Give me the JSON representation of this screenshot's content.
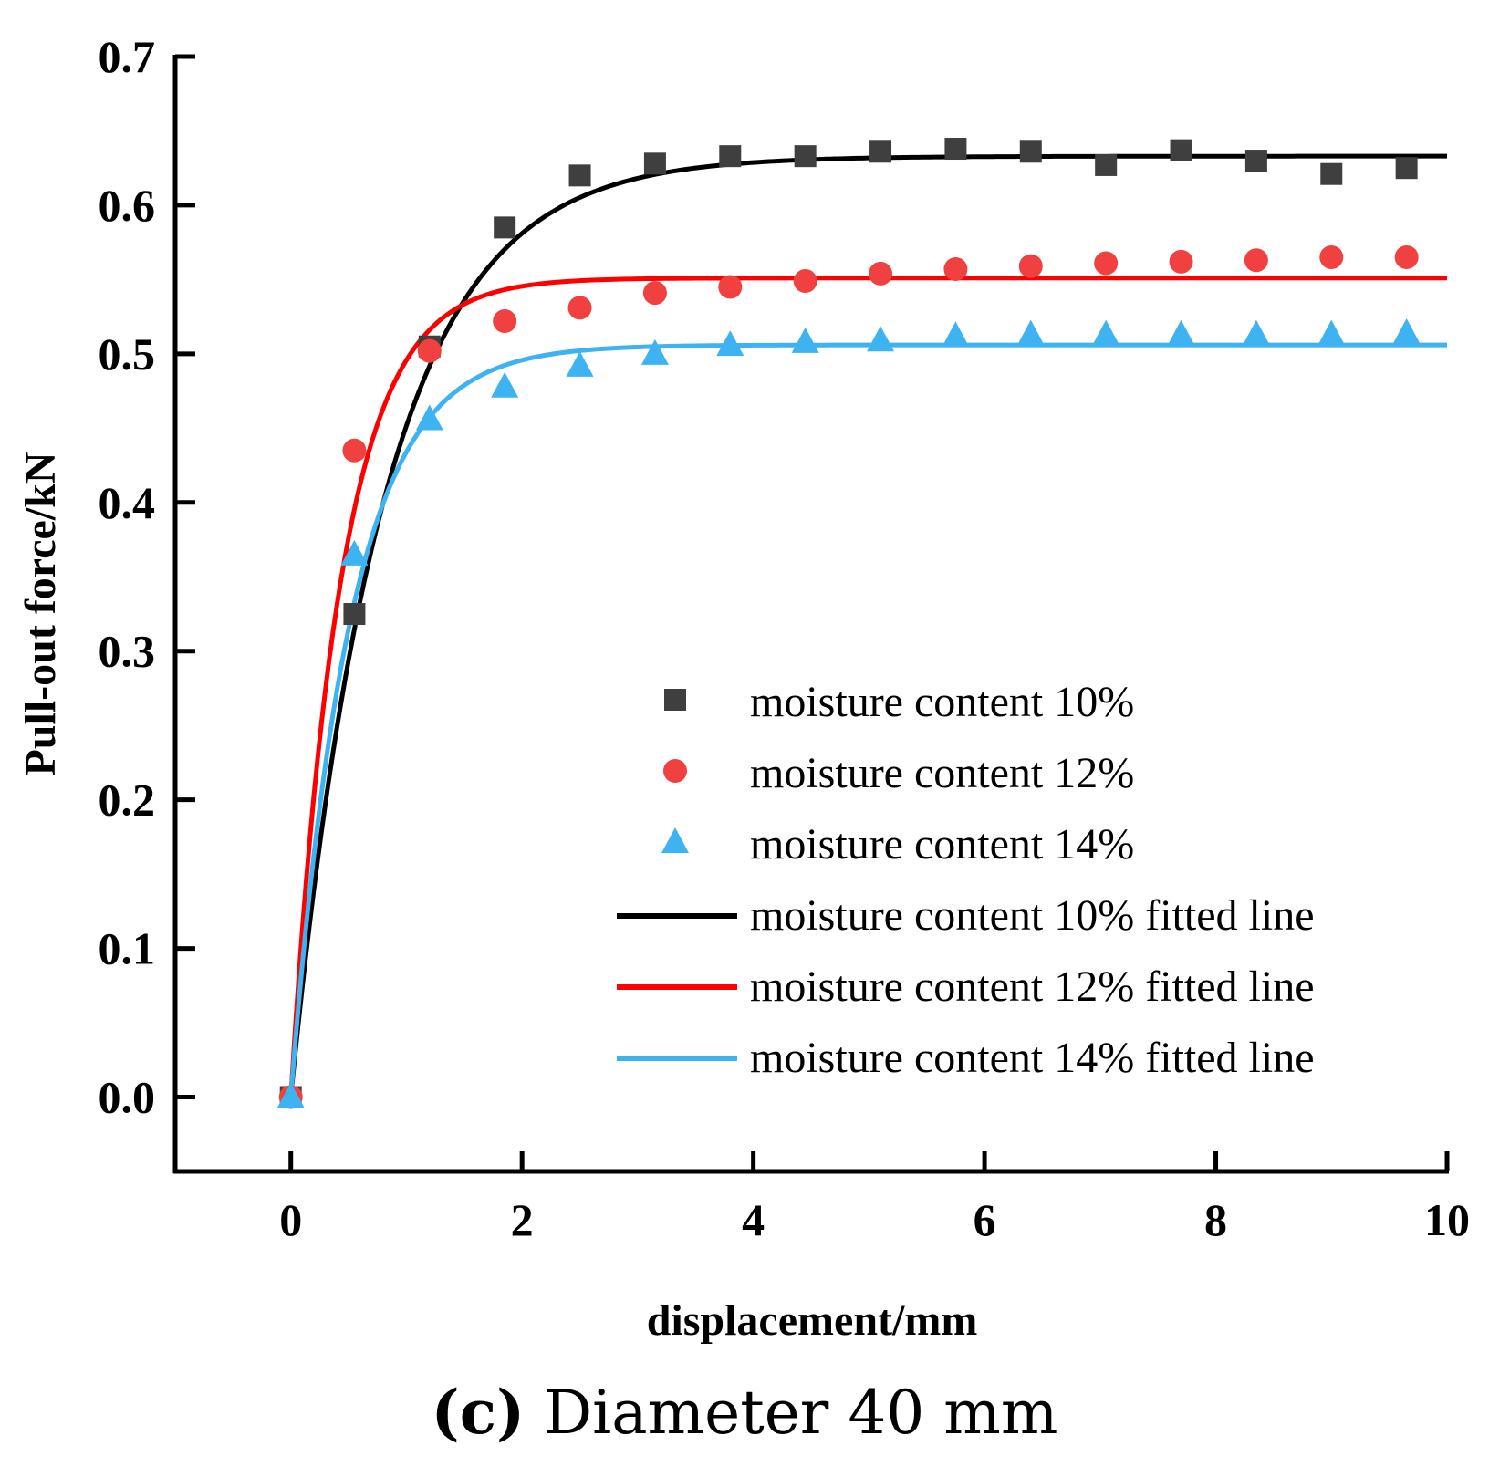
{
  "chart_data": {
    "type": "scatter",
    "title": "",
    "xlabel": "displacement/mm",
    "ylabel": "Pull-out force/kN",
    "xlim": [
      -1,
      10
    ],
    "ylim": [
      -0.05,
      0.7
    ],
    "xticks": [
      0,
      2,
      4,
      6,
      8,
      10
    ],
    "xtick_labels": [
      "0",
      "2",
      "4",
      "6",
      "8",
      "10"
    ],
    "yticks": [
      0.0,
      0.1,
      0.2,
      0.3,
      0.4,
      0.5,
      0.6,
      0.7
    ],
    "ytick_labels": [
      "0.0",
      "0.1",
      "0.2",
      "0.3",
      "0.4",
      "0.5",
      "0.6",
      "0.7"
    ],
    "grid": false,
    "legend_position": "bottom-right",
    "series": [
      {
        "name": "moisture content 10%",
        "marker": "square",
        "color": "#3f3f3f",
        "x": [
          0,
          0.55,
          1.2,
          1.85,
          2.5,
          3.15,
          3.8,
          4.45,
          5.1,
          5.75,
          6.4,
          7.05,
          7.7,
          8.35,
          9.0,
          9.65
        ],
        "y": [
          0,
          0.325,
          0.505,
          0.585,
          0.62,
          0.628,
          0.633,
          0.633,
          0.636,
          0.638,
          0.636,
          0.627,
          0.637,
          0.63,
          0.621,
          0.625
        ]
      },
      {
        "name": "moisture content 12%",
        "marker": "circle",
        "color": "#f14040",
        "x": [
          0,
          0.55,
          1.2,
          1.85,
          2.5,
          3.15,
          3.8,
          4.45,
          5.1,
          5.75,
          6.4,
          7.05,
          7.7,
          8.35,
          9.0,
          9.65
        ],
        "y": [
          0,
          0.435,
          0.502,
          0.522,
          0.531,
          0.541,
          0.545,
          0.549,
          0.554,
          0.557,
          0.559,
          0.561,
          0.562,
          0.563,
          0.565,
          0.565
        ]
      },
      {
        "name": "moisture content 14%",
        "marker": "triangle",
        "color": "#3eb3f2",
        "x": [
          0,
          0.55,
          1.2,
          1.85,
          2.5,
          3.15,
          3.8,
          4.45,
          5.1,
          5.75,
          6.4,
          7.05,
          7.7,
          8.35,
          9.0,
          9.65
        ],
        "y": [
          0,
          0.365,
          0.456,
          0.478,
          0.492,
          0.5,
          0.506,
          0.508,
          0.509,
          0.512,
          0.513,
          0.513,
          0.513,
          0.513,
          0.513,
          0.514
        ]
      }
    ],
    "fitted_lines": [
      {
        "name": "moisture content 10% fitted line",
        "color": "#000000",
        "model": "a*(1-exp(-b*x))",
        "a": 0.633,
        "b": 1.25,
        "x_range": [
          0,
          10
        ]
      },
      {
        "name": "moisture content 12% fitted line",
        "color": "#ff0000",
        "model": "a*(1-exp(-b*x))",
        "a": 0.551,
        "b": 2.3,
        "x_range": [
          0,
          10
        ]
      },
      {
        "name": "moisture content 14% fitted line",
        "color": "#3eb3f2",
        "model": "a*(1-exp(-b*x))",
        "a": 0.506,
        "b": 1.95,
        "x_range": [
          0,
          10
        ]
      }
    ]
  },
  "caption": {
    "label": "(c)",
    "text": "Diameter 40 mm"
  }
}
